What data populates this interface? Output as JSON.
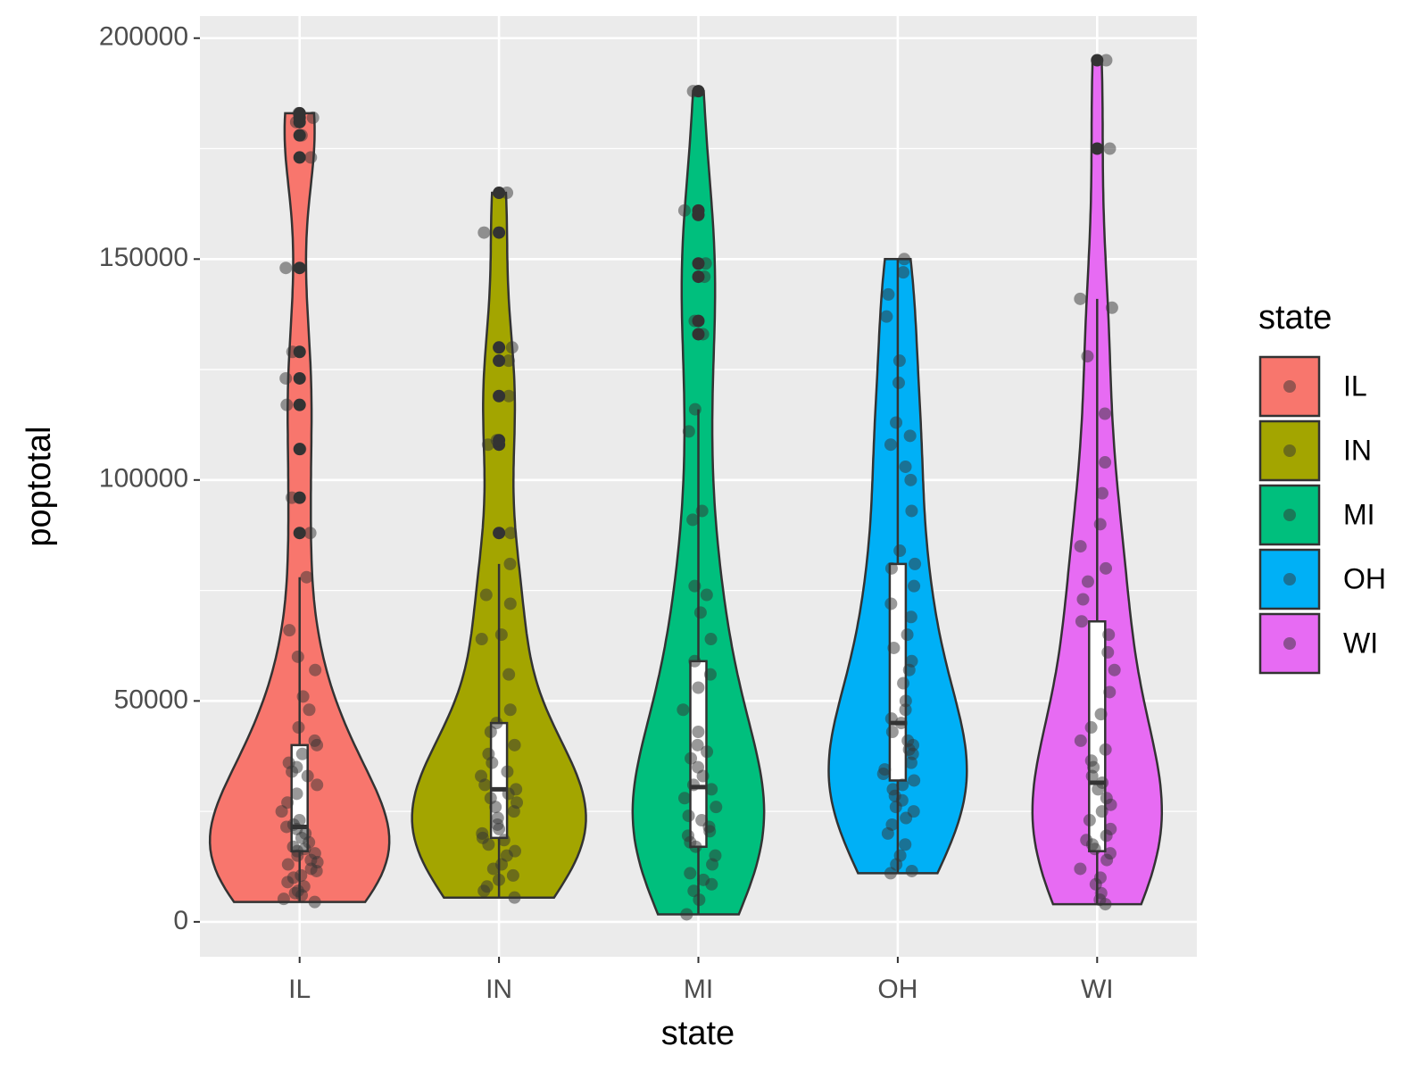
{
  "chart_data": {
    "type": "violin",
    "x_label": "state",
    "y_label": "poptotal",
    "legend_title": "state",
    "ylim": [
      -7900,
      205000
    ],
    "yticks": [
      0,
      50000,
      100000,
      150000,
      200000
    ],
    "grid": true,
    "legend_position": "right",
    "groups": [
      {
        "name": "IL",
        "color": "#F8766D",
        "whisker_low": 4500,
        "q1": 16000,
        "median": 21500,
        "q3": 40000,
        "whisker_high": 78000,
        "points": [
          4500,
          5200,
          6000,
          6500,
          7000,
          8000,
          9000,
          10000,
          10500,
          11500,
          12000,
          13000,
          13500,
          14000,
          15000,
          15500,
          16000,
          16500,
          17000,
          18000,
          19000,
          20000,
          21000,
          21500,
          22000,
          23000,
          25000,
          27000,
          29000,
          31000,
          33000,
          34000,
          35000,
          36000,
          38000,
          40000,
          41000,
          44000,
          48000,
          51000,
          57000,
          60000,
          66000,
          78000,
          88000,
          96000,
          107000,
          117000,
          123000,
          129000,
          148000,
          173000,
          178000,
          181000,
          182000,
          183000
        ]
      },
      {
        "name": "IN",
        "color": "#A3A500",
        "whisker_low": 5500,
        "q1": 19000,
        "median": 30000,
        "q3": 45000,
        "whisker_high": 81000,
        "points": [
          5500,
          7000,
          8000,
          9500,
          10500,
          12000,
          13000,
          15000,
          16000,
          17500,
          18500,
          19000,
          20000,
          21000,
          22000,
          23500,
          25000,
          26000,
          27000,
          28000,
          29000,
          30000,
          31000,
          33000,
          34000,
          36000,
          38000,
          40000,
          43000,
          45000,
          48000,
          56000,
          64000,
          65000,
          72000,
          74000,
          81000,
          88000,
          108000,
          109000,
          119000,
          127000,
          130000,
          156000,
          165000
        ]
      },
      {
        "name": "MI",
        "color": "#00BF7D",
        "whisker_low": 1700,
        "q1": 17000,
        "median": 30500,
        "q3": 59000,
        "whisker_high": 116000,
        "points": [
          1700,
          5000,
          7000,
          8500,
          9500,
          11000,
          13000,
          15000,
          17000,
          18000,
          19500,
          20500,
          21500,
          23000,
          24000,
          26000,
          28000,
          30000,
          31000,
          33000,
          35000,
          37000,
          38500,
          40000,
          43000,
          48000,
          53000,
          56000,
          59000,
          64000,
          70000,
          74000,
          76000,
          91000,
          93000,
          111000,
          116000,
          133000,
          136000,
          146000,
          149000,
          160000,
          161000,
          188000
        ]
      },
      {
        "name": "OH",
        "color": "#00B0F6",
        "whisker_low": 11000,
        "q1": 32000,
        "median": 45000,
        "q3": 81000,
        "whisker_high": 150000,
        "points": [
          11000,
          11500,
          13000,
          15000,
          17500,
          20000,
          22000,
          23500,
          25000,
          26000,
          27500,
          28500,
          30000,
          31000,
          32000,
          33500,
          34500,
          36000,
          38000,
          39000,
          40000,
          41000,
          43000,
          45000,
          46000,
          48000,
          50000,
          54000,
          57000,
          59000,
          62000,
          65000,
          69000,
          72000,
          76000,
          80000,
          81000,
          84000,
          93000,
          100000,
          103000,
          108000,
          110000,
          113000,
          122000,
          127000,
          137000,
          142000,
          147000,
          150000
        ]
      },
      {
        "name": "WI",
        "color": "#E76BF3",
        "whisker_low": 4000,
        "q1": 16000,
        "median": 31500,
        "q3": 68000,
        "whisker_high": 141000,
        "points": [
          4000,
          5000,
          6500,
          8500,
          10000,
          12000,
          14000,
          15500,
          16500,
          17500,
          18500,
          19500,
          21000,
          23000,
          25000,
          26500,
          28000,
          30000,
          31500,
          33000,
          35000,
          36500,
          39000,
          41000,
          44000,
          47000,
          52000,
          57000,
          61000,
          65000,
          68000,
          73000,
          77000,
          80000,
          85000,
          90000,
          97000,
          104000,
          115000,
          128000,
          139000,
          141000,
          175000,
          195000
        ]
      }
    ]
  }
}
